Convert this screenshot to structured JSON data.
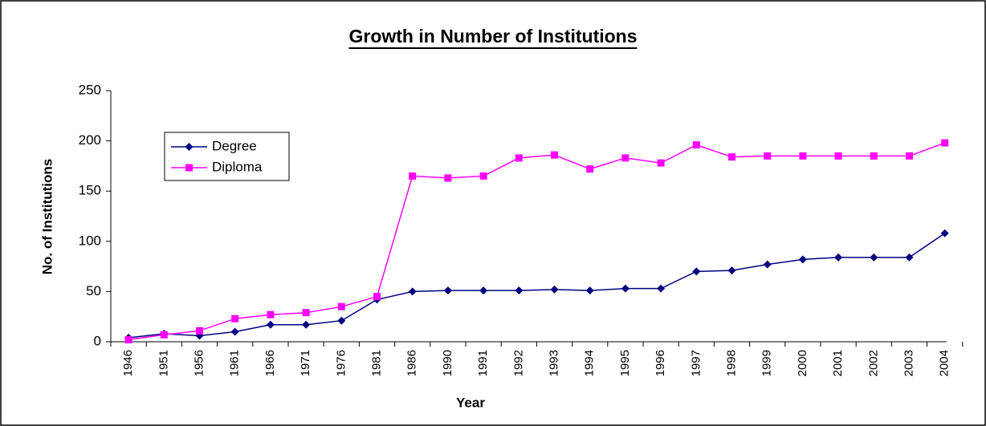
{
  "chart_data": {
    "type": "line",
    "title": "Growth in Number of Institutions",
    "x_label": "Year",
    "y_label": "No. of Institutions",
    "categories": [
      "1946",
      "1951",
      "1956",
      "1961",
      "1966",
      "1971",
      "1976",
      "1981",
      "1986",
      "1990",
      "1991",
      "1992",
      "1993",
      "1994",
      "1995",
      "1996",
      "1997",
      "1998",
      "1999",
      "2000",
      "2001",
      "2002",
      "2003",
      "2004"
    ],
    "series": [
      {
        "name": "Degree",
        "color": "#000080",
        "marker": "diamond",
        "values": [
          4,
          8,
          6,
          10,
          17,
          17,
          21,
          42,
          50,
          51,
          51,
          51,
          52,
          51,
          53,
          53,
          70,
          71,
          77,
          82,
          84,
          84,
          84,
          108
        ]
      },
      {
        "name": "Diploma",
        "color": "#ff00ff",
        "marker": "square",
        "values": [
          2,
          7,
          11,
          23,
          27,
          29,
          35,
          45,
          165,
          163,
          165,
          183,
          186,
          172,
          183,
          178,
          196,
          184,
          185,
          185,
          185,
          185,
          185,
          198
        ]
      }
    ],
    "ylim": [
      0,
      250
    ],
    "yticks": [
      0,
      50,
      100,
      150,
      200,
      250
    ],
    "grid": false
  }
}
